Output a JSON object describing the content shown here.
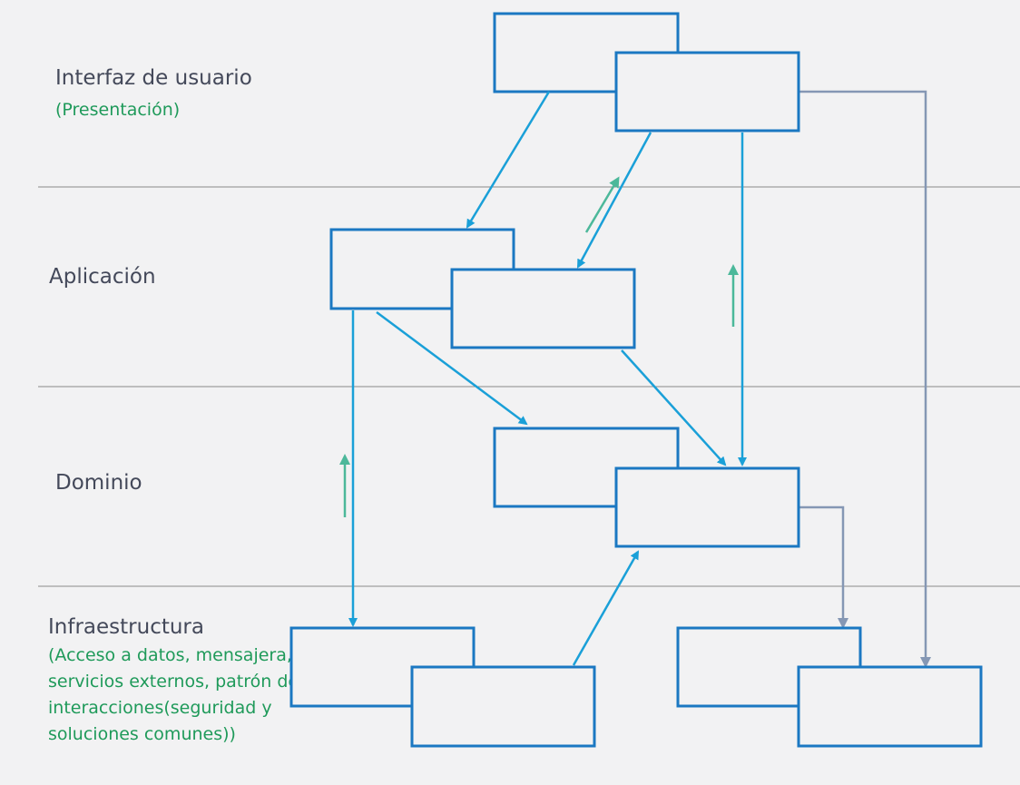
{
  "layers": [
    {
      "id": "ui",
      "label": "Interfaz de usuario",
      "sublabel": "(Presentación)"
    },
    {
      "id": "app",
      "label": "Aplicación",
      "sublabel": ""
    },
    {
      "id": "domain",
      "label": "Dominio",
      "sublabel": ""
    },
    {
      "id": "infra",
      "label": "Infraestructura",
      "sublabel": "(Acceso a datos, mensajera, servicios externos, patrón de interacciones(seguridad y soluciones comunes))"
    }
  ],
  "colors": {
    "background": "#f2f2f3",
    "box_stroke": "#1b78c2",
    "arrow_blue": "#1aa0d8",
    "arrow_gray": "#8597b4",
    "arrow_green": "#4cb89a",
    "divider": "#8a8a8a",
    "label_text": "#44495a",
    "sublabel_text": "#1f9a5a"
  }
}
